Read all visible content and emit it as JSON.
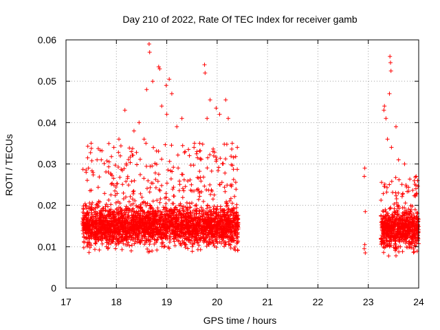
{
  "chart_data": {
    "type": "scatter",
    "title": "Day 210 of 2022, Rate Of TEC Index for receiver gamb",
    "xlabel": "GPS time / hours",
    "ylabel": "ROTI / TECUs",
    "xlim": [
      17,
      24
    ],
    "ylim": [
      0,
      0.06
    ],
    "grid": true,
    "marker": "+",
    "color": "#ff0000",
    "x_ticks": [
      17,
      18,
      19,
      20,
      21,
      22,
      23,
      24
    ],
    "x_tick_labels": [
      "17",
      "18",
      "19",
      "20",
      "21",
      "22",
      "23",
      "24"
    ],
    "y_ticks": [
      0,
      0.01,
      0.02,
      0.03,
      0.04,
      0.05,
      0.06
    ],
    "y_tick_labels": [
      "0",
      "0.01",
      "0.02",
      "0.03",
      "0.04",
      "0.05",
      "0.06"
    ],
    "series": [
      {
        "name": "ROTI",
        "segments": [
          {
            "x_start": 17.33,
            "x_end": 20.42,
            "baseline": 0.015,
            "spread_low": 0.005,
            "spread_high": 0.035,
            "density": "dense"
          },
          {
            "x_start": 22.9,
            "x_end": 22.98,
            "baseline": 0.01,
            "spread_low": 0.009,
            "spread_high": 0.029,
            "density": "sparse"
          },
          {
            "x_start": 23.25,
            "x_end": 24.0,
            "baseline": 0.014,
            "spread_low": 0.005,
            "spread_high": 0.027,
            "density": "dense"
          }
        ],
        "points": [
          [
            18.65,
            0.059
          ],
          [
            18.66,
            0.057
          ],
          [
            18.84,
            0.0535
          ],
          [
            18.86,
            0.053
          ],
          [
            19.05,
            0.0505
          ],
          [
            19.75,
            0.054
          ],
          [
            19.76,
            0.052
          ],
          [
            18.99,
            0.049
          ],
          [
            18.72,
            0.05
          ],
          [
            18.6,
            0.048
          ],
          [
            19.1,
            0.047
          ],
          [
            19.86,
            0.0455
          ],
          [
            19.98,
            0.0435
          ],
          [
            20.17,
            0.0455
          ],
          [
            18.17,
            0.043
          ],
          [
            18.9,
            0.044
          ],
          [
            20.05,
            0.042
          ],
          [
            20.22,
            0.041
          ],
          [
            19.8,
            0.041
          ],
          [
            19.0,
            0.042
          ],
          [
            23.43,
            0.056
          ],
          [
            23.44,
            0.0545
          ],
          [
            23.45,
            0.0525
          ],
          [
            23.42,
            0.047
          ],
          [
            23.32,
            0.044
          ],
          [
            23.31,
            0.043
          ],
          [
            23.35,
            0.041
          ],
          [
            23.55,
            0.039
          ],
          [
            23.38,
            0.036
          ],
          [
            23.46,
            0.034
          ],
          [
            22.93,
            0.029
          ],
          [
            22.92,
            0.027
          ],
          [
            22.94,
            0.0185
          ],
          [
            22.93,
            0.0105
          ],
          [
            22.92,
            0.0095
          ],
          [
            22.94,
            0.0085
          ],
          [
            23.6,
            0.031
          ],
          [
            23.72,
            0.03
          ],
          [
            23.95,
            0.027
          ],
          [
            23.98,
            0.026
          ],
          [
            17.5,
            0.035
          ],
          [
            17.7,
            0.031
          ],
          [
            17.95,
            0.034
          ],
          [
            18.05,
            0.036
          ],
          [
            18.35,
            0.038
          ],
          [
            18.45,
            0.04
          ],
          [
            19.3,
            0.041
          ],
          [
            19.55,
            0.035
          ],
          [
            19.6,
            0.033
          ],
          [
            20.3,
            0.035
          ],
          [
            20.4,
            0.034
          ],
          [
            17.4,
            0.028
          ],
          [
            18.55,
            0.036
          ],
          [
            19.2,
            0.039
          ],
          [
            19.45,
            0.032
          ]
        ]
      }
    ]
  }
}
